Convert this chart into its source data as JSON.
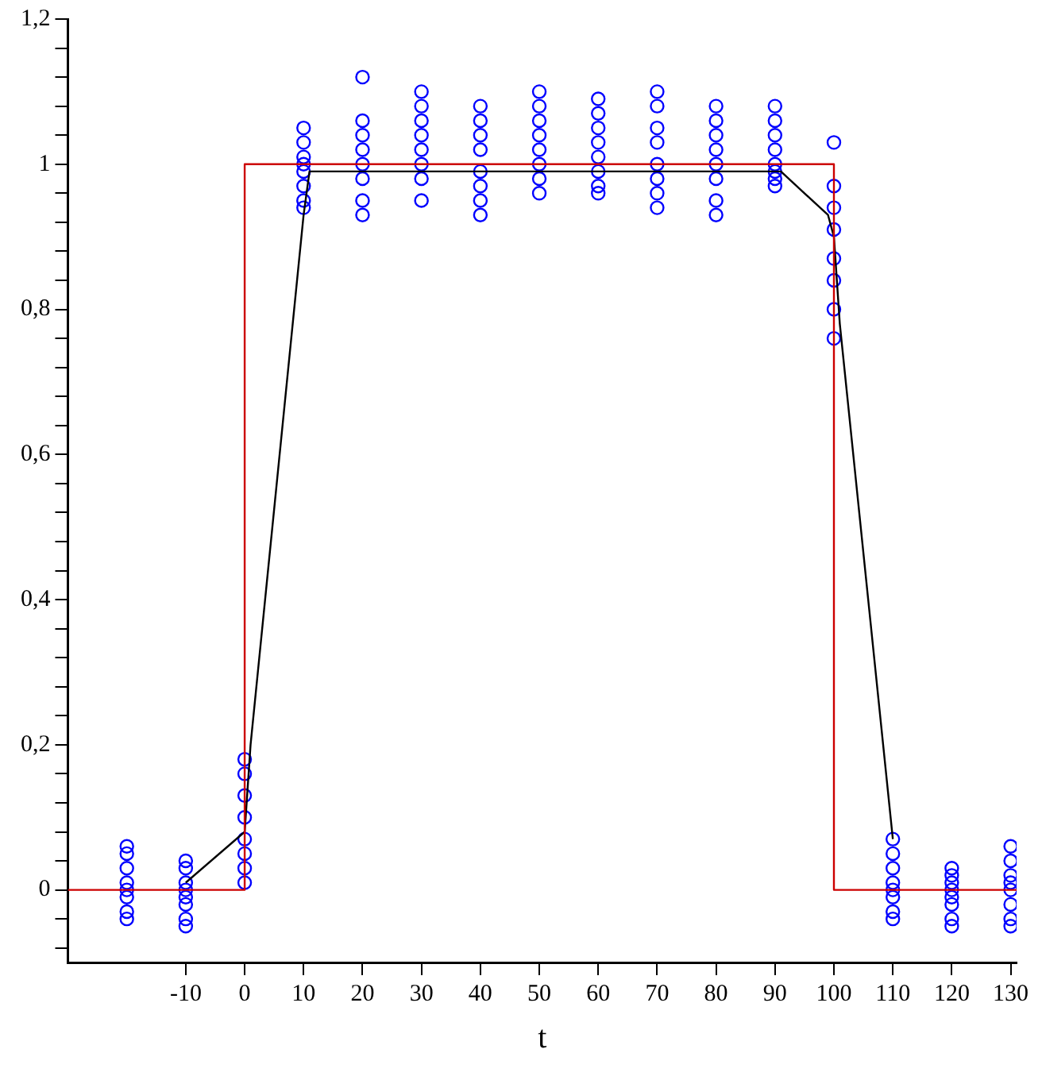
{
  "chart_data": {
    "type": "scatter",
    "xlabel": "t",
    "xlim": [
      -30,
      131
    ],
    "ylim": [
      -0.1,
      1.2
    ],
    "xticks": [
      -10,
      0,
      10,
      20,
      30,
      40,
      50,
      60,
      70,
      80,
      90,
      100,
      110,
      120,
      130
    ],
    "yticks": [
      {
        "value": -0.08,
        "label": null
      },
      {
        "value": -0.04,
        "label": null
      },
      {
        "value": 0,
        "label": "0"
      },
      {
        "value": 0.04,
        "label": null
      },
      {
        "value": 0.08,
        "label": null
      },
      {
        "value": 0.12,
        "label": null
      },
      {
        "value": 0.16,
        "label": null
      },
      {
        "value": 0.2,
        "label": "0,2"
      },
      {
        "value": 0.24,
        "label": null
      },
      {
        "value": 0.28,
        "label": null
      },
      {
        "value": 0.32,
        "label": null
      },
      {
        "value": 0.36,
        "label": null
      },
      {
        "value": 0.4,
        "label": "0,4"
      },
      {
        "value": 0.44,
        "label": null
      },
      {
        "value": 0.48,
        "label": null
      },
      {
        "value": 0.52,
        "label": null
      },
      {
        "value": 0.56,
        "label": null
      },
      {
        "value": 0.6,
        "label": "0,6"
      },
      {
        "value": 0.64,
        "label": null
      },
      {
        "value": 0.68,
        "label": null
      },
      {
        "value": 0.72,
        "label": null
      },
      {
        "value": 0.76,
        "label": null
      },
      {
        "value": 0.8,
        "label": "0,8"
      },
      {
        "value": 0.84,
        "label": null
      },
      {
        "value": 0.88,
        "label": null
      },
      {
        "value": 0.92,
        "label": null
      },
      {
        "value": 0.96,
        "label": null
      },
      {
        "value": 1,
        "label": "1"
      },
      {
        "value": 1.04,
        "label": null
      },
      {
        "value": 1.08,
        "label": null
      },
      {
        "value": 1.12,
        "label": null
      },
      {
        "value": 1.16,
        "label": null
      },
      {
        "value": 1.2,
        "label": "1,2"
      }
    ],
    "grid": false,
    "legend": false,
    "series": [
      {
        "type": "line",
        "color": "#cc0000",
        "marker": "none",
        "x": [
          -30,
          0,
          0,
          100,
          100,
          131
        ],
        "values": [
          0,
          0,
          1,
          1,
          0,
          0
        ]
      },
      {
        "type": "line",
        "color": "#000000",
        "marker": "none",
        "x": [
          -10,
          0,
          1,
          10,
          11,
          91,
          99,
          100,
          101,
          110
        ],
        "values": [
          0.01,
          0.08,
          0.2,
          0.93,
          0.99,
          0.99,
          0.93,
          0.9,
          0.78,
          0.07
        ]
      },
      {
        "color": "#0000ff",
        "marker": "circle",
        "x": [
          -20,
          -20,
          -20,
          -20,
          -20,
          -20,
          -20,
          -20,
          -10,
          -10,
          -10,
          -10,
          -10,
          -10,
          -10,
          -10,
          0,
          0,
          0,
          0,
          0,
          0,
          0,
          0,
          10,
          10,
          10,
          10,
          10,
          10,
          10,
          10,
          20,
          20,
          20,
          20,
          20,
          20,
          20,
          20,
          30,
          30,
          30,
          30,
          30,
          30,
          30,
          30,
          40,
          40,
          40,
          40,
          40,
          40,
          40,
          40,
          50,
          50,
          50,
          50,
          50,
          50,
          50,
          50,
          60,
          60,
          60,
          60,
          60,
          60,
          60,
          60,
          70,
          70,
          70,
          70,
          70,
          70,
          70,
          70,
          80,
          80,
          80,
          80,
          80,
          80,
          80,
          80,
          90,
          90,
          90,
          90,
          90,
          90,
          90,
          90,
          100,
          100,
          100,
          100,
          100,
          100,
          100,
          100,
          110,
          110,
          110,
          110,
          110,
          110,
          110,
          110,
          120,
          120,
          120,
          120,
          120,
          120,
          120,
          120,
          130,
          130,
          130,
          130,
          130,
          130,
          130,
          130
        ],
        "values": [
          0.06,
          0.05,
          0.03,
          0.01,
          0,
          -0.01,
          -0.03,
          -0.04,
          0.04,
          0.03,
          0.01,
          0,
          -0.01,
          -0.02,
          -0.04,
          -0.05,
          0.18,
          0.16,
          0.13,
          0.1,
          0.07,
          0.05,
          0.03,
          0.01,
          1.05,
          1.03,
          1.01,
          1,
          0.99,
          0.97,
          0.95,
          0.94,
          1.12,
          1.06,
          1.04,
          1.02,
          1,
          0.98,
          0.95,
          0.93,
          1.1,
          1.08,
          1.06,
          1.04,
          1.02,
          1,
          0.98,
          0.95,
          1.08,
          1.06,
          1.04,
          1.02,
          0.99,
          0.97,
          0.95,
          0.93,
          1.1,
          1.08,
          1.06,
          1.04,
          1.02,
          1,
          0.98,
          0.96,
          1.09,
          1.07,
          1.05,
          1.03,
          1.01,
          0.99,
          0.97,
          0.96,
          1.1,
          1.08,
          1.05,
          1.03,
          1,
          0.98,
          0.96,
          0.94,
          1.08,
          1.06,
          1.04,
          1.02,
          1,
          0.98,
          0.95,
          0.93,
          1.08,
          1.06,
          1.04,
          1.02,
          1,
          0.99,
          0.98,
          0.97,
          1.03,
          0.97,
          0.94,
          0.91,
          0.87,
          0.84,
          0.8,
          0.76,
          0.07,
          0.05,
          0.03,
          0.01,
          0,
          -0.01,
          -0.03,
          -0.04,
          0.03,
          0.02,
          0.01,
          0,
          -0.01,
          -0.02,
          -0.04,
          -0.05,
          0.06,
          0.04,
          0.02,
          0.01,
          0,
          -0.02,
          -0.04,
          -0.05
        ]
      }
    ]
  }
}
